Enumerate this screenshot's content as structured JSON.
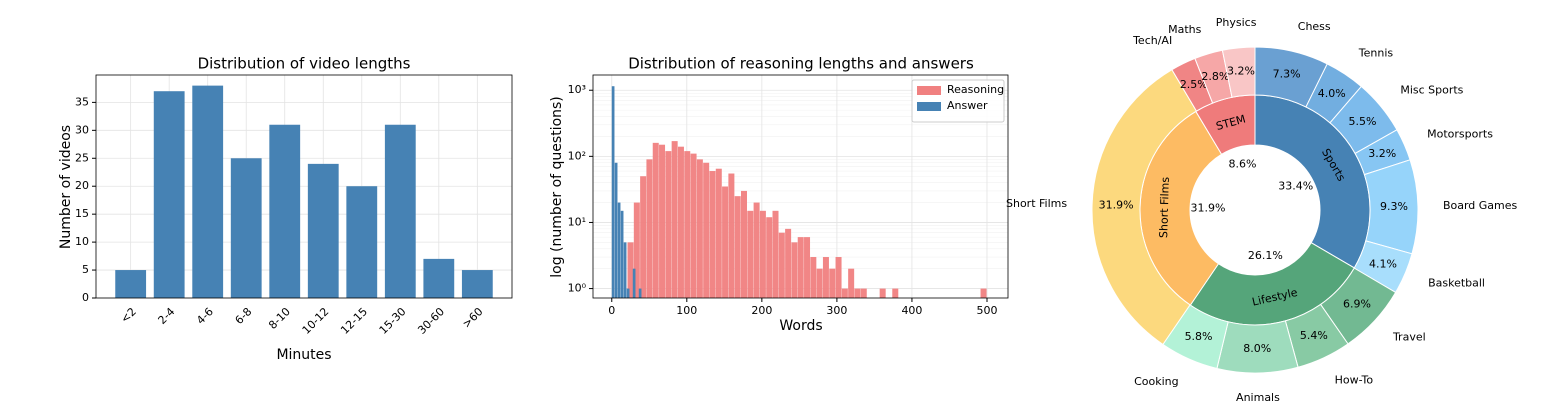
{
  "chart_data": [
    {
      "type": "bar",
      "title": "Distribution of video lengths",
      "xlabel": "Minutes",
      "ylabel": "Number of videos",
      "categories": [
        "<2",
        "2-4",
        "4-6",
        "6-8",
        "8-10",
        "10-12",
        "12-15",
        "15-30",
        "30-60",
        ">60"
      ],
      "values": [
        5,
        37,
        38,
        25,
        31,
        24,
        20,
        31,
        7,
        5
      ],
      "color": "#4682b4",
      "ylim": [
        0,
        39.9
      ],
      "yticks": [
        0,
        5,
        10,
        15,
        20,
        25,
        30,
        35
      ],
      "grid": true
    },
    {
      "type": "histogram",
      "title": "Distribution of reasoning lengths and answers",
      "xlabel": "Words",
      "ylabel": "log (number of questions)",
      "series": [
        {
          "name": "Reasoning",
          "color": "#f08080",
          "bins": [
            21,
            29.4,
            37.8,
            46.2,
            54.6,
            63,
            71.4,
            79.8,
            88.2,
            96.6,
            105,
            113.4,
            121.8,
            130.2,
            138.6,
            147,
            155.4,
            163.8,
            172.2,
            180.6,
            189,
            197.4,
            205.8,
            214.2,
            222.6,
            231,
            239.4,
            247.8,
            256.2,
            264.6,
            273,
            281.4,
            289.8,
            298.2,
            306.6,
            315,
            323.4,
            331.8,
            340.2,
            348.6,
            357,
            365.4,
            373.8,
            382.2,
            390.6,
            399,
            407.4,
            415.8,
            424.2,
            432.6,
            441,
            449.4,
            457.8,
            466.2,
            474.6,
            483,
            491.4,
            499.8
          ],
          "values": [
            5,
            20,
            50,
            90,
            160,
            150,
            120,
            170,
            140,
            120,
            110,
            90,
            80,
            60,
            65,
            35,
            55,
            25,
            30,
            15,
            20,
            15,
            12,
            15,
            7,
            8,
            5,
            6,
            6,
            3,
            2,
            3,
            2,
            3,
            1,
            2,
            1,
            1,
            0,
            0,
            1,
            0,
            1,
            0,
            0,
            0,
            0,
            0,
            0,
            0,
            0,
            0,
            0,
            0,
            0,
            0,
            1
          ]
        },
        {
          "name": "Answer",
          "color": "#4682b4",
          "bins": [
            0,
            4,
            8,
            12,
            16,
            20,
            24,
            28,
            32,
            36,
            40
          ],
          "values": [
            1150,
            80,
            20,
            15,
            5,
            1,
            0,
            2,
            0,
            1
          ]
        }
      ],
      "xlim": [
        -25,
        528
      ],
      "xticks": [
        0,
        100,
        200,
        300,
        400,
        500
      ],
      "ylim": [
        0.72,
        1700
      ],
      "log_y": true,
      "yticks": [
        {
          "value": 1,
          "label": "10⁰"
        },
        {
          "value": 10,
          "label": "10¹"
        },
        {
          "value": 100,
          "label": "10²"
        },
        {
          "value": 1000,
          "label": "10³"
        }
      ],
      "grid": true,
      "legend": "upper right"
    },
    {
      "type": "pie",
      "rings": [
        {
          "labels": [
            "Sports",
            "Lifestyle",
            "Short Films",
            "STEM"
          ],
          "values": [
            33.4,
            26.1,
            31.9,
            8.6
          ],
          "value_labels": [
            "33.4%",
            "26.1%",
            "31.9%",
            "8.6%"
          ],
          "colors": [
            "#4682b4",
            "#55a57a",
            "#fdbb63",
            "#ef7b7b"
          ]
        },
        {
          "labels": [
            "Chess",
            "Tennis",
            "Misc Sports",
            "Motorsports",
            "Board Games",
            "Basketball",
            "Travel",
            "How-To",
            "Animals",
            "Cooking",
            "Short Films",
            "Tech/AI",
            "Maths",
            "Physics"
          ],
          "values": [
            7.3,
            4.0,
            5.5,
            3.2,
            9.3,
            4.1,
            6.9,
            5.4,
            8.0,
            5.8,
            31.9,
            2.5,
            2.8,
            3.2
          ],
          "value_labels": [
            "7.3%",
            "4.0%",
            "5.5%",
            "3.2%",
            "9.3%",
            "4.1%",
            "6.9%",
            "5.4%",
            "8.0%",
            "5.8%",
            "31.9%",
            "2.5%",
            "2.8%",
            "3.2%"
          ],
          "colors": [
            "#6aa0d2",
            "#72aee0",
            "#7dbbec",
            "#87c6f3",
            "#96d4fa",
            "#a8defc",
            "#72b992",
            "#88caa4",
            "#9edcbd",
            "#b3f2d7",
            "#fcd97e",
            "#f08585",
            "#f6a7a7",
            "#f9c6c6"
          ]
        }
      ]
    }
  ]
}
